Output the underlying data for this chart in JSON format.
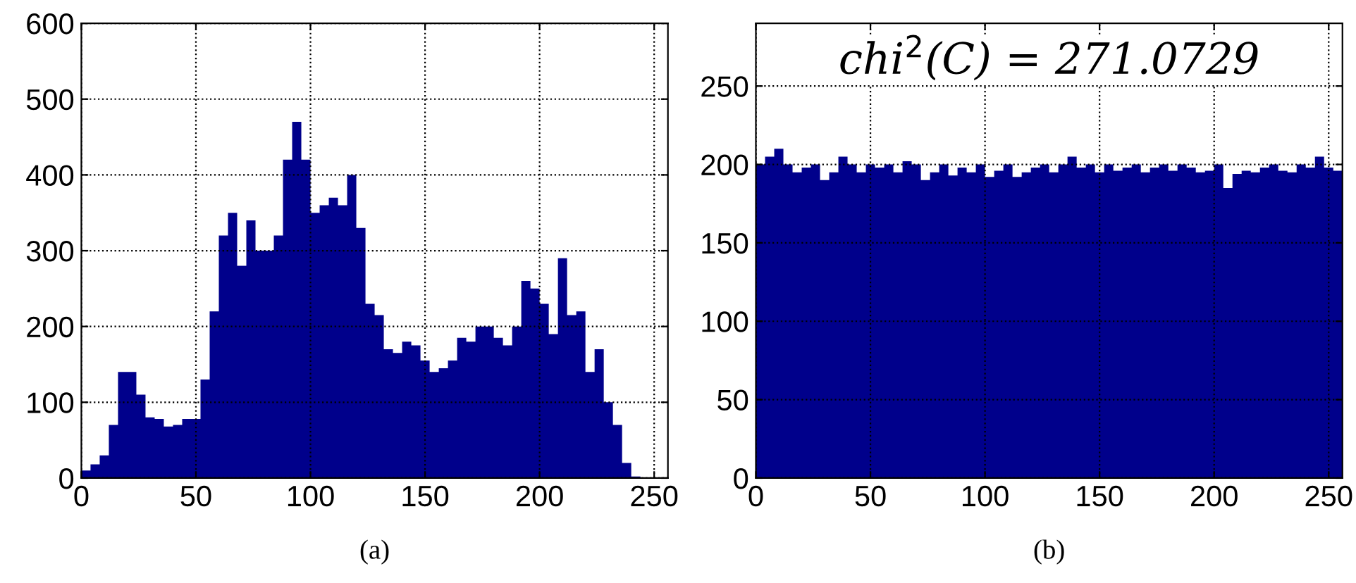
{
  "chart_data": [
    {
      "type": "histogram",
      "xlabel": "(a)",
      "color": "#00008b",
      "bins": [
        0,
        4,
        8,
        12,
        16,
        20,
        24,
        28,
        32,
        36,
        40,
        44,
        48,
        52,
        56,
        60,
        64,
        68,
        72,
        76,
        80,
        84,
        88,
        92,
        96,
        100,
        104,
        108,
        112,
        116,
        120,
        124,
        128,
        132,
        136,
        140,
        144,
        148,
        152,
        156,
        160,
        164,
        168,
        172,
        176,
        180,
        184,
        188,
        192,
        196,
        200,
        204,
        208,
        212,
        216,
        220,
        224,
        228,
        232,
        236,
        240,
        244,
        248,
        252,
        256
      ],
      "values": [
        10,
        18,
        30,
        70,
        140,
        140,
        110,
        80,
        78,
        68,
        70,
        78,
        78,
        130,
        220,
        320,
        350,
        280,
        340,
        300,
        300,
        320,
        420,
        470,
        420,
        350,
        360,
        370,
        360,
        400,
        330,
        230,
        215,
        170,
        165,
        180,
        175,
        155,
        140,
        145,
        155,
        185,
        180,
        200,
        200,
        185,
        175,
        200,
        260,
        250,
        230,
        190,
        290,
        215,
        220,
        140,
        170,
        100,
        70,
        20,
        2,
        0,
        0,
        0
      ],
      "xlim": [
        0,
        256
      ],
      "ylim": [
        0,
        600
      ],
      "xticks": [
        0,
        50,
        100,
        150,
        200,
        250
      ],
      "yticks": [
        0,
        100,
        200,
        300,
        400,
        500,
        600
      ],
      "grid": true
    },
    {
      "type": "histogram",
      "xlabel": "(b)",
      "color": "#00008b",
      "annotations": [
        "chi$^{2}$(C) = 271.0729"
      ],
      "bins": [
        0,
        4,
        8,
        12,
        16,
        20,
        24,
        28,
        32,
        36,
        40,
        44,
        48,
        52,
        56,
        60,
        64,
        68,
        72,
        76,
        80,
        84,
        88,
        92,
        96,
        100,
        104,
        108,
        112,
        116,
        120,
        124,
        128,
        132,
        136,
        140,
        144,
        148,
        152,
        156,
        160,
        164,
        168,
        172,
        176,
        180,
        184,
        188,
        192,
        196,
        200,
        204,
        208,
        212,
        216,
        220,
        224,
        228,
        232,
        236,
        240,
        244,
        248,
        252,
        256
      ],
      "values": [
        200,
        205,
        210,
        200,
        195,
        198,
        200,
        190,
        195,
        205,
        200,
        195,
        200,
        198,
        200,
        195,
        202,
        200,
        190,
        195,
        200,
        193,
        198,
        195,
        200,
        192,
        196,
        200,
        192,
        195,
        198,
        200,
        195,
        200,
        205,
        198,
        200,
        195,
        200,
        196,
        198,
        200,
        195,
        198,
        200,
        196,
        200,
        198,
        195,
        196,
        200,
        185,
        194,
        196,
        195,
        198,
        200,
        196,
        195,
        200,
        198,
        205,
        198,
        196
      ],
      "xlim": [
        0,
        256
      ],
      "ylim": [
        0,
        290
      ],
      "xticks": [
        0,
        50,
        100,
        150,
        200,
        250
      ],
      "yticks": [
        0,
        50,
        100,
        150,
        200,
        250
      ],
      "grid": true
    }
  ]
}
